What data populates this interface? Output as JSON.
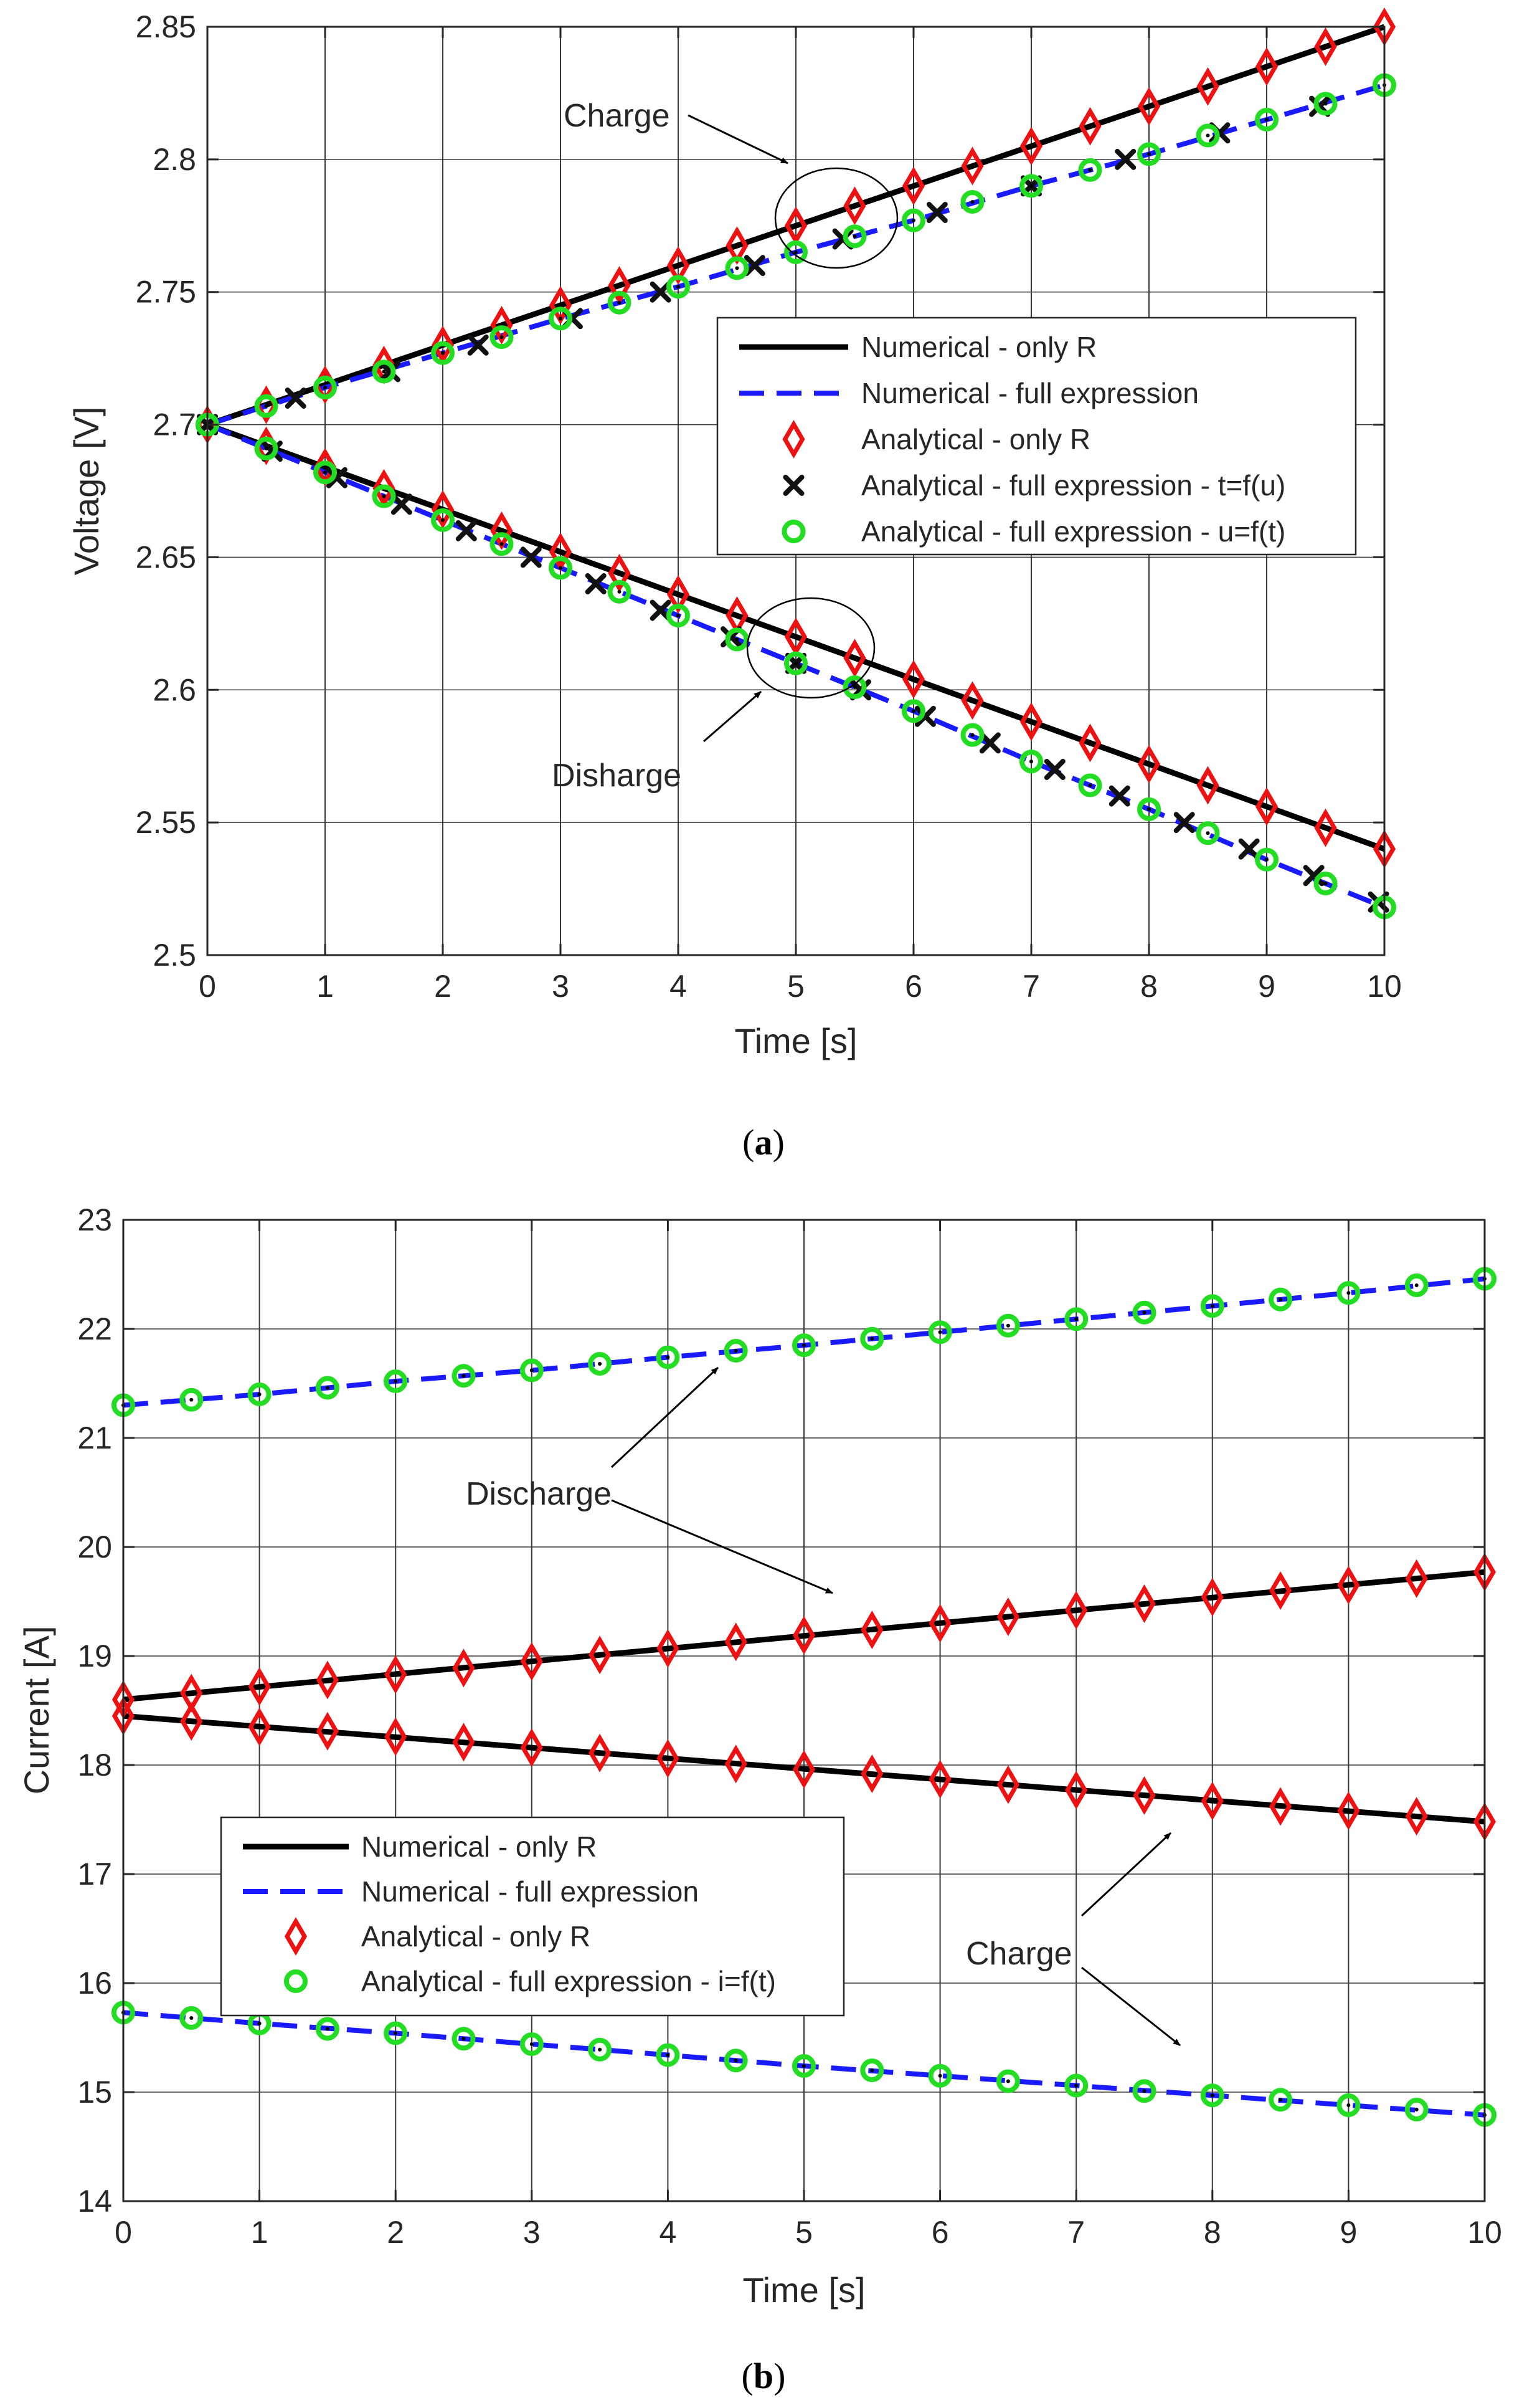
{
  "colors": {
    "numerical_R": "#000000",
    "numerical_full": "#1a1aff",
    "analytical_R": "#ee1111",
    "analytical_tu": "#111111",
    "analytical_ut": "#22dd22",
    "grid": "#3a3a3a"
  },
  "chart_data": [
    {
      "id": "a",
      "type": "line",
      "caption_open": "(",
      "caption_letter": "a",
      "caption_close": ")",
      "xlabel": "Time [s]",
      "ylabel": "Voltage [V]",
      "xlim": [
        0,
        10
      ],
      "ylim": [
        2.5,
        2.85
      ],
      "xticks": [
        0,
        1,
        2,
        3,
        4,
        5,
        6,
        7,
        8,
        9,
        10
      ],
      "xtick_labels": [
        "0",
        "1",
        "2",
        "3",
        "4",
        "5",
        "6",
        "7",
        "8",
        "9",
        "10"
      ],
      "yticks": [
        2.5,
        2.55,
        2.6,
        2.65,
        2.7,
        2.75,
        2.8,
        2.85
      ],
      "ytick_labels": [
        "2.5",
        "2.55",
        "2.6",
        "2.65",
        "2.7",
        "2.75",
        "2.8",
        "2.85"
      ],
      "legend": [
        {
          "label": "Numerical - only R",
          "marker": "line-solid",
          "color_key": "numerical_R"
        },
        {
          "label": "Numerical - full expression",
          "marker": "line-dashed",
          "color_key": "numerical_full"
        },
        {
          "label": "Analytical - only R",
          "marker": "diamond",
          "color_key": "analytical_R"
        },
        {
          "label": "Analytical - full expression - t=f(u)",
          "marker": "cross",
          "color_key": "analytical_tu"
        },
        {
          "label": "Analytical - full expression - u=f(t)",
          "marker": "circle",
          "color_key": "analytical_ut"
        }
      ],
      "annotations": [
        {
          "text": "Charge",
          "target": [
            5.0,
            2.798
          ]
        },
        {
          "text": "Disharge",
          "target": [
            4.75,
            2.598
          ]
        }
      ],
      "series": [
        {
          "name": "Numerical - only R (charge)",
          "style": "line-solid",
          "color_key": "numerical_R",
          "x": [
            0,
            10
          ],
          "y": [
            2.7,
            2.85
          ]
        },
        {
          "name": "Numerical - only R (discharge)",
          "style": "line-solid",
          "color_key": "numerical_R",
          "x": [
            0,
            10
          ],
          "y": [
            2.7,
            2.54
          ]
        },
        {
          "name": "Numerical - full expression (charge)",
          "style": "line-dashed",
          "color_key": "numerical_full",
          "x": [
            0,
            1,
            2,
            3,
            4,
            5,
            6,
            7,
            8,
            9,
            10
          ],
          "y": [
            2.7,
            2.714,
            2.727,
            2.74,
            2.752,
            2.765,
            2.777,
            2.79,
            2.802,
            2.815,
            2.828
          ]
        },
        {
          "name": "Numerical - full expression (discharge)",
          "style": "line-dashed",
          "color_key": "numerical_full",
          "x": [
            0,
            1,
            2,
            3,
            4,
            5,
            6,
            7,
            8,
            9,
            10
          ],
          "y": [
            2.7,
            2.682,
            2.664,
            2.646,
            2.628,
            2.61,
            2.592,
            2.573,
            2.555,
            2.536,
            2.518
          ]
        },
        {
          "name": "Analytical - only R (charge)",
          "style": "diamond",
          "color_key": "analytical_R",
          "x": [
            0,
            0.5,
            1,
            1.5,
            2,
            2.5,
            3,
            3.5,
            4,
            4.5,
            5,
            5.5,
            6,
            6.5,
            7,
            7.5,
            8,
            8.5,
            9,
            9.5,
            10
          ],
          "y": [
            2.7,
            2.7075,
            2.715,
            2.7225,
            2.73,
            2.7375,
            2.745,
            2.7525,
            2.76,
            2.7675,
            2.775,
            2.7825,
            2.79,
            2.7975,
            2.805,
            2.8125,
            2.82,
            2.8275,
            2.835,
            2.8425,
            2.85
          ]
        },
        {
          "name": "Analytical - only R (discharge)",
          "style": "diamond",
          "color_key": "analytical_R",
          "x": [
            0,
            0.5,
            1,
            1.5,
            2,
            2.5,
            3,
            3.5,
            4,
            4.5,
            5,
            5.5,
            6,
            6.5,
            7,
            7.5,
            8,
            8.5,
            9,
            9.5,
            10
          ],
          "y": [
            2.7,
            2.692,
            2.684,
            2.676,
            2.668,
            2.66,
            2.652,
            2.644,
            2.636,
            2.628,
            2.62,
            2.612,
            2.604,
            2.596,
            2.588,
            2.58,
            2.572,
            2.564,
            2.556,
            2.548,
            2.54
          ]
        },
        {
          "name": "Analytical - full expression - t=f(u) (charge)",
          "style": "cross",
          "color_key": "analytical_tu",
          "x": [
            0,
            0.75,
            1.55,
            2.3,
            3.1,
            3.85,
            4.65,
            5.4,
            6.2,
            7.0,
            7.8,
            8.6,
            9.45
          ],
          "y": [
            2.7,
            2.71,
            2.72,
            2.73,
            2.74,
            2.75,
            2.76,
            2.77,
            2.78,
            2.79,
            2.8,
            2.81,
            2.82
          ]
        },
        {
          "name": "Analytical - full expression - t=f(u) (discharge)",
          "style": "cross",
          "color_key": "analytical_tu",
          "x": [
            0,
            0.55,
            1.1,
            1.65,
            2.2,
            2.75,
            3.3,
            3.85,
            4.45,
            5.0,
            5.55,
            6.1,
            6.65,
            7.2,
            7.75,
            8.3,
            8.85,
            9.4,
            9.95
          ],
          "y": [
            2.7,
            2.69,
            2.68,
            2.67,
            2.66,
            2.65,
            2.64,
            2.63,
            2.62,
            2.61,
            2.6,
            2.59,
            2.58,
            2.57,
            2.56,
            2.55,
            2.54,
            2.53,
            2.52
          ]
        },
        {
          "name": "Analytical - full expression - u=f(t) (charge)",
          "style": "circle",
          "color_key": "analytical_ut",
          "x": [
            0,
            0.5,
            1,
            1.5,
            2,
            2.5,
            3,
            3.5,
            4,
            4.5,
            5,
            5.5,
            6,
            6.5,
            7,
            7.5,
            8,
            8.5,
            9,
            9.5,
            10
          ],
          "y": [
            2.7,
            2.707,
            2.714,
            2.72,
            2.727,
            2.733,
            2.74,
            2.746,
            2.752,
            2.759,
            2.765,
            2.771,
            2.777,
            2.784,
            2.79,
            2.796,
            2.802,
            2.809,
            2.815,
            2.821,
            2.828
          ]
        },
        {
          "name": "Analytical - full expression - u=f(t) (discharge)",
          "style": "circle",
          "color_key": "analytical_ut",
          "x": [
            0,
            0.5,
            1,
            1.5,
            2,
            2.5,
            3,
            3.5,
            4,
            4.5,
            5,
            5.5,
            6,
            6.5,
            7,
            7.5,
            8,
            8.5,
            9,
            9.5,
            10
          ],
          "y": [
            2.7,
            2.691,
            2.682,
            2.673,
            2.664,
            2.655,
            2.646,
            2.637,
            2.628,
            2.619,
            2.61,
            2.601,
            2.592,
            2.583,
            2.573,
            2.564,
            2.555,
            2.546,
            2.536,
            2.527,
            2.518
          ]
        }
      ]
    },
    {
      "id": "b",
      "type": "line",
      "caption_open": "(",
      "caption_letter": "b",
      "caption_close": ")",
      "xlabel": "Time [s]",
      "ylabel": "Current [A]",
      "xlim": [
        0,
        10
      ],
      "ylim": [
        14,
        23
      ],
      "xticks": [
        0,
        1,
        2,
        3,
        4,
        5,
        6,
        7,
        8,
        9,
        10
      ],
      "xtick_labels": [
        "0",
        "1",
        "2",
        "3",
        "4",
        "5",
        "6",
        "7",
        "8",
        "9",
        "10"
      ],
      "yticks": [
        14,
        15,
        16,
        17,
        18,
        19,
        20,
        21,
        22,
        23
      ],
      "ytick_labels": [
        "14",
        "15",
        "16",
        "17",
        "18",
        "19",
        "20",
        "21",
        "22",
        "23"
      ],
      "legend": [
        {
          "label": "Numerical - only R",
          "marker": "line-solid",
          "color_key": "numerical_R"
        },
        {
          "label": "Numerical - full expression",
          "marker": "line-dashed",
          "color_key": "numerical_full"
        },
        {
          "label": "Analytical - only R",
          "marker": "diamond",
          "color_key": "analytical_R"
        },
        {
          "label": "Analytical - full expression - i=f(t)",
          "marker": "circle",
          "color_key": "analytical_ut"
        }
      ],
      "annotations": [
        {
          "text": "Discharge",
          "targets": [
            [
              4.35,
              21.75
            ],
            [
              5.2,
              19.05
            ]
          ]
        },
        {
          "text": "Charge",
          "targets": [
            [
              7.7,
              17.35
            ],
            [
              7.75,
              15.1
            ]
          ]
        }
      ],
      "series": [
        {
          "name": "Numerical - full expression (discharge)",
          "style": "line-dashed",
          "color_key": "numerical_full",
          "x": [
            0,
            1,
            2,
            3,
            4,
            5,
            6,
            7,
            8,
            9,
            10
          ],
          "y": [
            21.3,
            21.4,
            21.52,
            21.62,
            21.74,
            21.85,
            21.97,
            22.09,
            22.21,
            22.33,
            22.46
          ]
        },
        {
          "name": "Numerical - only R (discharge)",
          "style": "line-solid",
          "color_key": "numerical_R",
          "x": [
            0,
            10
          ],
          "y": [
            18.6,
            19.77
          ]
        },
        {
          "name": "Numerical - only R (charge)",
          "style": "line-solid",
          "color_key": "numerical_R",
          "x": [
            0,
            10
          ],
          "y": [
            18.45,
            17.48
          ]
        },
        {
          "name": "Numerical - full expression (charge)",
          "style": "line-dashed",
          "color_key": "numerical_full",
          "x": [
            0,
            1,
            2,
            3,
            4,
            5,
            6,
            7,
            8,
            9,
            10
          ],
          "y": [
            15.73,
            15.63,
            15.54,
            15.44,
            15.34,
            15.24,
            15.15,
            15.06,
            14.97,
            14.88,
            14.79
          ]
        },
        {
          "name": "Analytical - full expression - i=f(t) (discharge)",
          "style": "circle",
          "color_key": "analytical_ut",
          "x": [
            0,
            0.5,
            1,
            1.5,
            2,
            2.5,
            3,
            3.5,
            4,
            4.5,
            5,
            5.5,
            6,
            6.5,
            7,
            7.5,
            8,
            8.5,
            9,
            9.5,
            10
          ],
          "y": [
            21.3,
            21.35,
            21.4,
            21.46,
            21.52,
            21.57,
            21.62,
            21.68,
            21.74,
            21.8,
            21.85,
            21.91,
            21.97,
            22.03,
            22.09,
            22.15,
            22.21,
            22.27,
            22.33,
            22.4,
            22.46
          ]
        },
        {
          "name": "Analytical - only R (discharge)",
          "style": "diamond",
          "color_key": "analytical_R",
          "x": [
            0,
            0.5,
            1,
            1.5,
            2,
            2.5,
            3,
            3.5,
            4,
            4.5,
            5,
            5.5,
            6,
            6.5,
            7,
            7.5,
            8,
            8.5,
            9,
            9.5,
            10
          ],
          "y": [
            18.6,
            18.66,
            18.72,
            18.78,
            18.83,
            18.89,
            18.95,
            19.01,
            19.07,
            19.13,
            19.19,
            19.24,
            19.3,
            19.36,
            19.42,
            19.48,
            19.54,
            19.6,
            19.65,
            19.71,
            19.77
          ]
        },
        {
          "name": "Analytical - only R (charge)",
          "style": "diamond",
          "color_key": "analytical_R",
          "x": [
            0,
            0.5,
            1,
            1.5,
            2,
            2.5,
            3,
            3.5,
            4,
            4.5,
            5,
            5.5,
            6,
            6.5,
            7,
            7.5,
            8,
            8.5,
            9,
            9.5,
            10
          ],
          "y": [
            18.45,
            18.4,
            18.35,
            18.31,
            18.26,
            18.21,
            18.16,
            18.11,
            18.06,
            18.01,
            17.96,
            17.92,
            17.87,
            17.82,
            17.77,
            17.72,
            17.67,
            17.62,
            17.58,
            17.53,
            17.48
          ]
        },
        {
          "name": "Analytical - full expression - i=f(t) (charge)",
          "style": "circle",
          "color_key": "analytical_ut",
          "x": [
            0,
            0.5,
            1,
            1.5,
            2,
            2.5,
            3,
            3.5,
            4,
            4.5,
            5,
            5.5,
            6,
            6.5,
            7,
            7.5,
            8,
            8.5,
            9,
            9.5,
            10
          ],
          "y": [
            15.73,
            15.68,
            15.63,
            15.58,
            15.54,
            15.49,
            15.44,
            15.39,
            15.34,
            15.29,
            15.24,
            15.2,
            15.15,
            15.1,
            15.06,
            15.01,
            14.97,
            14.93,
            14.88,
            14.84,
            14.79
          ]
        }
      ]
    }
  ]
}
